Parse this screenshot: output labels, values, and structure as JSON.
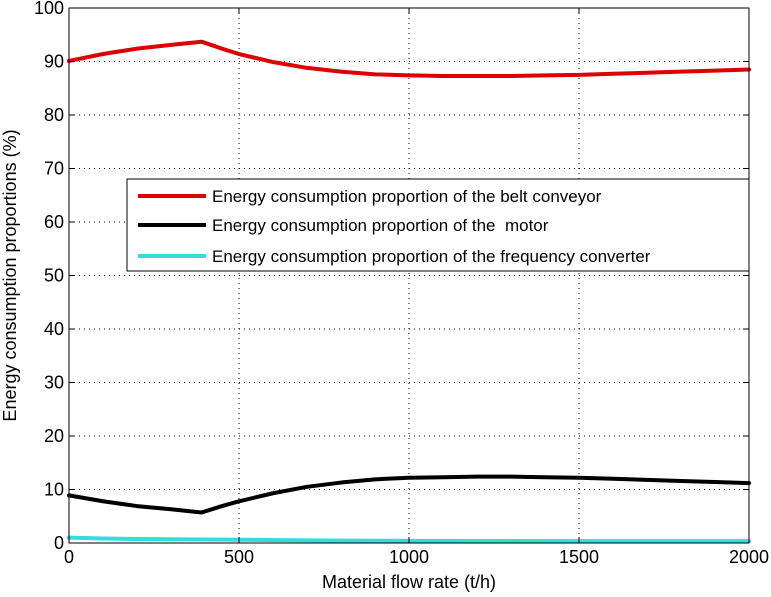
{
  "chart_data": {
    "type": "line",
    "title": "",
    "xlabel": "Material flow rate (t/h)",
    "ylabel": "Energy consumption proportions (%)",
    "xlim": [
      0,
      2000
    ],
    "ylim": [
      0,
      100
    ],
    "xticks": [
      0,
      500,
      1000,
      1500,
      2000
    ],
    "yticks": [
      0,
      10,
      20,
      30,
      40,
      50,
      60,
      70,
      80,
      90,
      100
    ],
    "grid": true,
    "legend_position": "upper-right",
    "series": [
      {
        "name": "Energy consumption proportion of the belt conveyor",
        "color": "#dd0000",
        "x": [
          0,
          100,
          200,
          300,
          390,
          450,
          500,
          600,
          700,
          800,
          900,
          1000,
          1100,
          1200,
          1300,
          1400,
          1500,
          1600,
          1700,
          1800,
          1900,
          2000
        ],
        "y": [
          90.1,
          91.4,
          92.4,
          93.1,
          93.7,
          92.4,
          91.4,
          89.9,
          88.8,
          88.1,
          87.6,
          87.4,
          87.3,
          87.3,
          87.3,
          87.4,
          87.5,
          87.7,
          87.9,
          88.1,
          88.3,
          88.5
        ]
      },
      {
        "name": "Energy consumption proportion of the  motor",
        "color": "#000000",
        "x": [
          0,
          100,
          200,
          300,
          390,
          450,
          500,
          600,
          700,
          800,
          900,
          1000,
          1100,
          1200,
          1300,
          1400,
          1500,
          1600,
          1700,
          1800,
          1900,
          2000
        ],
        "y": [
          8.9,
          7.8,
          6.9,
          6.3,
          5.7,
          6.9,
          7.8,
          9.3,
          10.5,
          11.3,
          11.9,
          12.2,
          12.3,
          12.4,
          12.4,
          12.3,
          12.2,
          12.0,
          11.8,
          11.6,
          11.4,
          11.2
        ]
      },
      {
        "name": "Energy consumption proportion of the frequency converter",
        "color": "#33dddd",
        "x": [
          0,
          100,
          200,
          300,
          390,
          500,
          700,
          1000,
          1500,
          2000
        ],
        "y": [
          1.0,
          0.85,
          0.75,
          0.7,
          0.65,
          0.6,
          0.5,
          0.4,
          0.35,
          0.35
        ]
      }
    ]
  }
}
